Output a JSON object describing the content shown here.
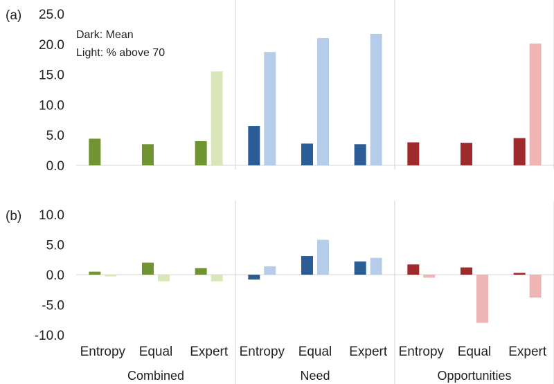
{
  "chart_data": {
    "type": "bar",
    "legend": [
      "Dark: Mean",
      "Light: % above 70"
    ],
    "groups": [
      "Combined",
      "Need",
      "Opportunities"
    ],
    "categories": [
      "Entropy",
      "Equal",
      "Expert"
    ],
    "colors": {
      "Combined": {
        "dark": "#6f9431",
        "light": "#d9e7b8"
      },
      "Need": {
        "dark": "#2b5c96",
        "light": "#b5cde9"
      },
      "Opportunities": {
        "dark": "#9e2a2b",
        "light": "#efb4b4"
      }
    },
    "panels": [
      {
        "label": "(a)",
        "ylim": [
          0,
          25
        ],
        "yticks": [
          "25.0",
          "20.0",
          "15.0",
          "10.0",
          "5.0",
          "0.0"
        ],
        "ytick_values": [
          25,
          20,
          15,
          10,
          5,
          0
        ],
        "dark": [
          [
            4.4,
            3.5,
            4.0
          ],
          [
            6.5,
            3.6,
            3.5
          ],
          [
            3.8,
            3.7,
            4.5
          ]
        ],
        "light": [
          [
            0,
            0,
            15.5
          ],
          [
            18.7,
            21.0,
            21.7
          ],
          [
            0,
            0,
            20.1
          ]
        ]
      },
      {
        "label": "(b)",
        "ylim": [
          -10,
          10
        ],
        "yticks": [
          "10.0",
          "5.0",
          "0.0",
          "-5.0",
          "-10.0"
        ],
        "ytick_values": [
          10,
          5,
          0,
          -5,
          -10
        ],
        "dark": [
          [
            0.5,
            2.0,
            1.1
          ],
          [
            -0.8,
            3.1,
            2.2
          ],
          [
            1.7,
            1.2,
            0.3
          ]
        ],
        "light": [
          [
            -0.3,
            -1.1,
            -1.1
          ],
          [
            1.4,
            5.8,
            2.8
          ],
          [
            -0.5,
            -8.0,
            -3.8
          ]
        ]
      }
    ]
  }
}
